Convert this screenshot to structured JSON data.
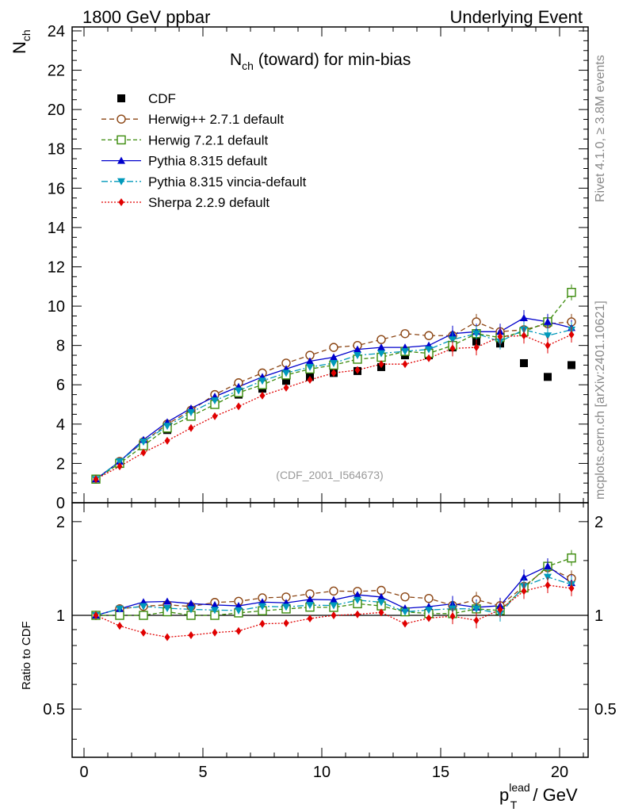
{
  "header": {
    "left": "1800 GeV ppbar",
    "right": "Underlying Event"
  },
  "side_labels": {
    "rivet": "Rivet 4.1.0, ≥ 3.8M events",
    "mcplots": "mcplots.cern.ch [arXiv:2401.10621]"
  },
  "chart_data": {
    "type": "scatter",
    "title_main": "N",
    "title_sub": "ch",
    "title_rest": " (toward) for min-bias",
    "ylabel_main": "N",
    "ylabel_sub": "ch",
    "ratio_ylabel": "Ratio to CDF",
    "xlabel_p": "p",
    "xlabel_sup": "lead",
    "xlabel_sub": "T",
    "xlabel_rest": " / GeV",
    "watermark": "(CDF_2001_I564673)",
    "xlim": [
      -0.5,
      21.2
    ],
    "ylim": [
      0,
      24.2
    ],
    "ratio_ylim": [
      0.35,
      2.3
    ],
    "x_ticks": [
      "0",
      "5",
      "10",
      "15",
      "20"
    ],
    "y_ticks": [
      "0",
      "2",
      "4",
      "6",
      "8",
      "10",
      "12",
      "14",
      "16",
      "18",
      "20",
      "22",
      "24"
    ],
    "ratio_ticks": [
      "0.5",
      "1",
      "2"
    ],
    "x": [
      0.5,
      1.5,
      2.5,
      3.5,
      4.5,
      5.5,
      6.5,
      7.5,
      8.5,
      9.5,
      10.5,
      11.5,
      12.5,
      13.5,
      14.5,
      15.5,
      16.5,
      17.5,
      18.5,
      19.5,
      20.5
    ],
    "data_name": "CDF",
    "data": [
      1.2,
      2.0,
      2.9,
      3.7,
      4.4,
      5.0,
      5.5,
      5.8,
      6.2,
      6.4,
      6.6,
      6.7,
      6.9,
      7.5,
      7.5,
      7.9,
      8.2,
      8.1,
      7.1,
      6.4,
      7.0
    ],
    "series": [
      {
        "name": "Herwig++ 2.7.1 default",
        "color": "#8B4513",
        "marker": "circle-open",
        "dash": "6,4",
        "values": [
          1.2,
          2.1,
          3.1,
          4.0,
          4.7,
          5.5,
          6.1,
          6.6,
          7.1,
          7.5,
          7.9,
          8.0,
          8.3,
          8.6,
          8.5,
          8.5,
          9.2,
          8.7,
          8.8,
          9.1,
          9.2
        ]
      },
      {
        "name": "Herwig 7.2.1 default",
        "color": "#3A8A0A",
        "marker": "square-open",
        "dash": "5,3",
        "values": [
          1.2,
          2.0,
          2.9,
          3.8,
          4.4,
          5.0,
          5.6,
          6.0,
          6.5,
          6.8,
          7.0,
          7.3,
          7.4,
          7.7,
          7.6,
          8.0,
          8.6,
          8.4,
          8.7,
          9.2,
          10.7
        ]
      },
      {
        "name": "Pythia 8.315 default",
        "color": "#0000CC",
        "marker": "triangle-up",
        "dash": "",
        "values": [
          1.2,
          2.1,
          3.2,
          4.1,
          4.8,
          5.4,
          5.9,
          6.4,
          6.8,
          7.2,
          7.4,
          7.8,
          7.9,
          7.9,
          8.0,
          8.6,
          8.7,
          8.7,
          9.4,
          9.2,
          8.9
        ]
      },
      {
        "name": "Pythia 8.315 vincia-default",
        "color": "#0099BB",
        "marker": "triangle-down",
        "dash": "8,3,2,3",
        "values": [
          1.2,
          2.1,
          3.1,
          3.9,
          4.6,
          5.2,
          5.7,
          6.2,
          6.6,
          6.9,
          7.1,
          7.5,
          7.6,
          7.7,
          7.8,
          8.3,
          8.6,
          8.2,
          8.8,
          8.5,
          8.8
        ]
      },
      {
        "name": "Sherpa 2.2.9 default",
        "color": "#E00000",
        "marker": "diamond",
        "dash": "2,2",
        "values": [
          1.2,
          1.85,
          2.55,
          3.15,
          3.8,
          4.4,
          4.9,
          5.45,
          5.85,
          6.25,
          6.6,
          6.75,
          7.05,
          7.05,
          7.35,
          7.85,
          7.9,
          8.45,
          8.5,
          8.0,
          8.55
        ]
      }
    ]
  }
}
